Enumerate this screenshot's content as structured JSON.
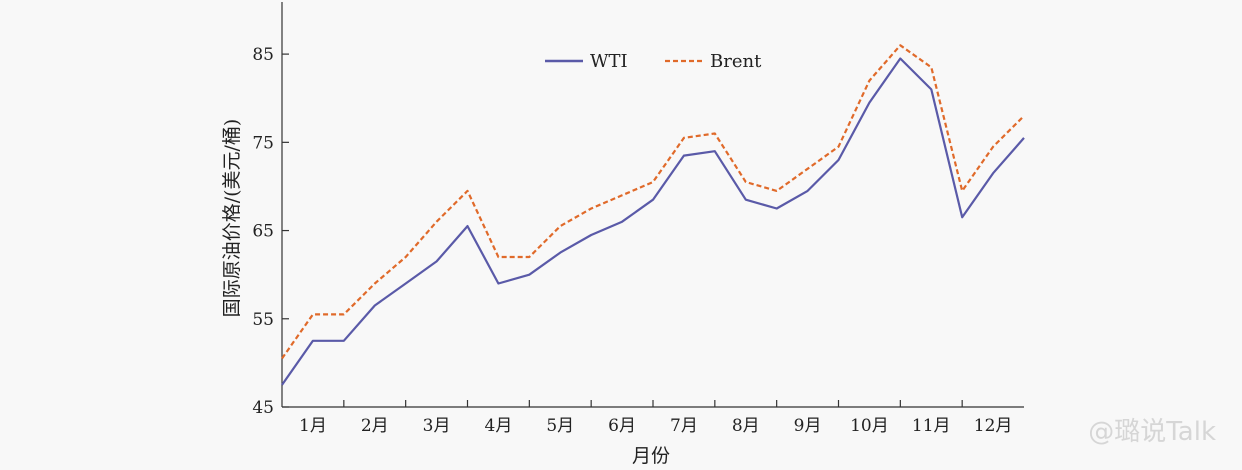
{
  "chart_data": {
    "type": "line",
    "title": "",
    "xlabel": "月份",
    "ylabel": "国际原油价格/(美元/桶)",
    "ylim": [
      45,
      90
    ],
    "yticks": [
      45,
      55,
      65,
      75,
      85
    ],
    "categories": [
      "1月",
      "2月",
      "3月",
      "4月",
      "5月",
      "6月",
      "7月",
      "8月",
      "9月",
      "10月",
      "11月",
      "12月"
    ],
    "x": [
      0.0,
      0.5,
      1.0,
      1.5,
      2.0,
      2.5,
      3.0,
      3.5,
      4.0,
      4.5,
      5.0,
      5.5,
      6.0,
      6.5,
      7.0,
      7.5,
      8.0,
      8.5,
      9.0,
      9.5,
      10.0,
      10.5,
      11.0,
      11.5,
      12.0
    ],
    "series": [
      {
        "name": "WTI",
        "color": "#5a5aa8",
        "dash": "solid",
        "values": [
          47.5,
          52.5,
          52.5,
          56.5,
          59.0,
          61.5,
          65.5,
          59.0,
          60.0,
          62.5,
          64.5,
          66.0,
          68.5,
          73.5,
          74.0,
          68.5,
          67.5,
          69.5,
          73.0,
          79.5,
          84.5,
          81.0,
          66.5,
          71.5,
          75.5
        ]
      },
      {
        "name": "Brent",
        "color": "#e06a2a",
        "dash": "dashed",
        "values": [
          50.5,
          55.5,
          55.5,
          59.0,
          62.0,
          66.0,
          69.5,
          62.0,
          62.0,
          65.5,
          67.5,
          69.0,
          70.5,
          75.5,
          76.0,
          70.5,
          69.5,
          72.0,
          74.5,
          82.0,
          86.0,
          83.5,
          69.5,
          74.5,
          78.0
        ]
      }
    ],
    "legend": "top-center",
    "grid": false
  },
  "watermark": "@璐说Talk"
}
